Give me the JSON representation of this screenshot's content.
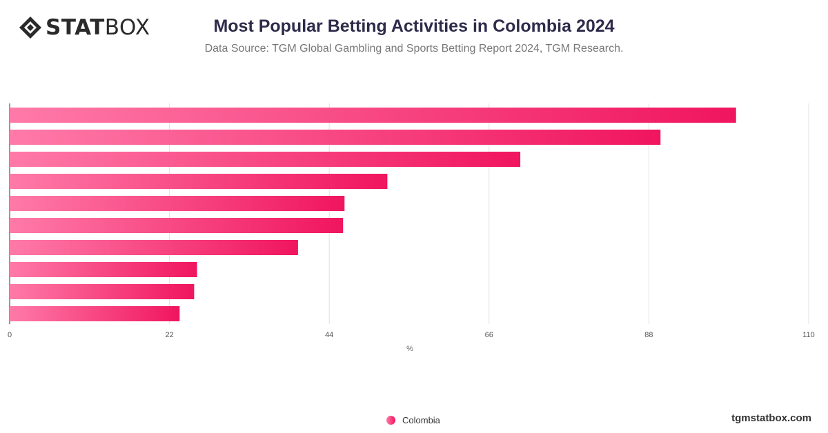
{
  "brand": {
    "logo_bold": "STAT",
    "logo_light": "BOX",
    "footer_site": "tgmstatbox.com"
  },
  "header": {
    "title": "Most Popular Betting Activities in Colombia 2024",
    "subtitle": "Data Source: TGM Global Gambling and Sports Betting Report 2024, TGM Research."
  },
  "legend": {
    "series_label": "Colombia"
  },
  "colors": {
    "bar_start": "#ff7aa8",
    "bar_end": "#f0155f",
    "title": "#2e2b4a",
    "grid": "#e2e2e2"
  },
  "chart_data": {
    "type": "bar",
    "orientation": "horizontal",
    "title": "Most Popular Betting Activities in Colombia 2024",
    "xlabel": "%",
    "ylabel": "",
    "xlim": [
      0,
      110
    ],
    "x_ticks": [
      0,
      22,
      44,
      66,
      88,
      110
    ],
    "grid": true,
    "legend_position": "bottom",
    "series": [
      {
        "name": "Colombia",
        "values": [
          100,
          89.6,
          70.3,
          52,
          46.1,
          45.9,
          39.7,
          25.8,
          25.4,
          23.4
        ]
      }
    ]
  }
}
